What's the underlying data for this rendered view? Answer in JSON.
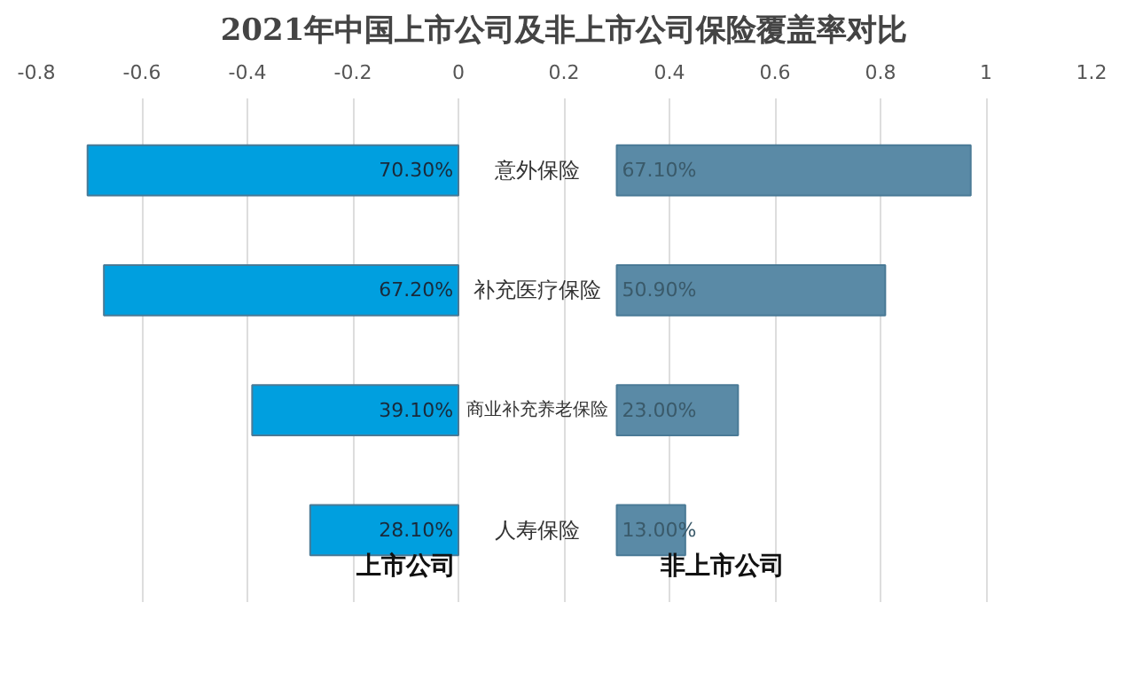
{
  "chart_data": {
    "type": "bar",
    "orientation": "horizontal",
    "title": "2021年中国上市公司及非上市公司保险覆盖率对比",
    "categories": [
      "意外保险",
      "补充医疗保险",
      "商业补充养老保险",
      "人寿保险"
    ],
    "series": [
      {
        "name": "上市公司",
        "color": "#009fdf",
        "base": [
          -0.703,
          -0.672,
          -0.391,
          -0.281
        ],
        "values": [
          0.703,
          0.672,
          0.391,
          0.281
        ],
        "value_labels": [
          "70.30%",
          "67.20%",
          "39.10%",
          "28.10%"
        ]
      },
      {
        "name": "非上市公司",
        "color": "#5a8aa6",
        "base": [
          0.3,
          0.3,
          0.3,
          0.3
        ],
        "values": [
          0.671,
          0.509,
          0.23,
          0.13
        ],
        "value_labels": [
          "67.10%",
          "50.90%",
          "23.00%",
          "13.00%"
        ]
      }
    ],
    "xlim": [
      -0.8,
      1.2
    ],
    "xticks": [
      -0.8,
      -0.6,
      -0.4,
      -0.2,
      0,
      0.2,
      0.4,
      0.6,
      0.8,
      1,
      1.2
    ],
    "grid": "x"
  }
}
